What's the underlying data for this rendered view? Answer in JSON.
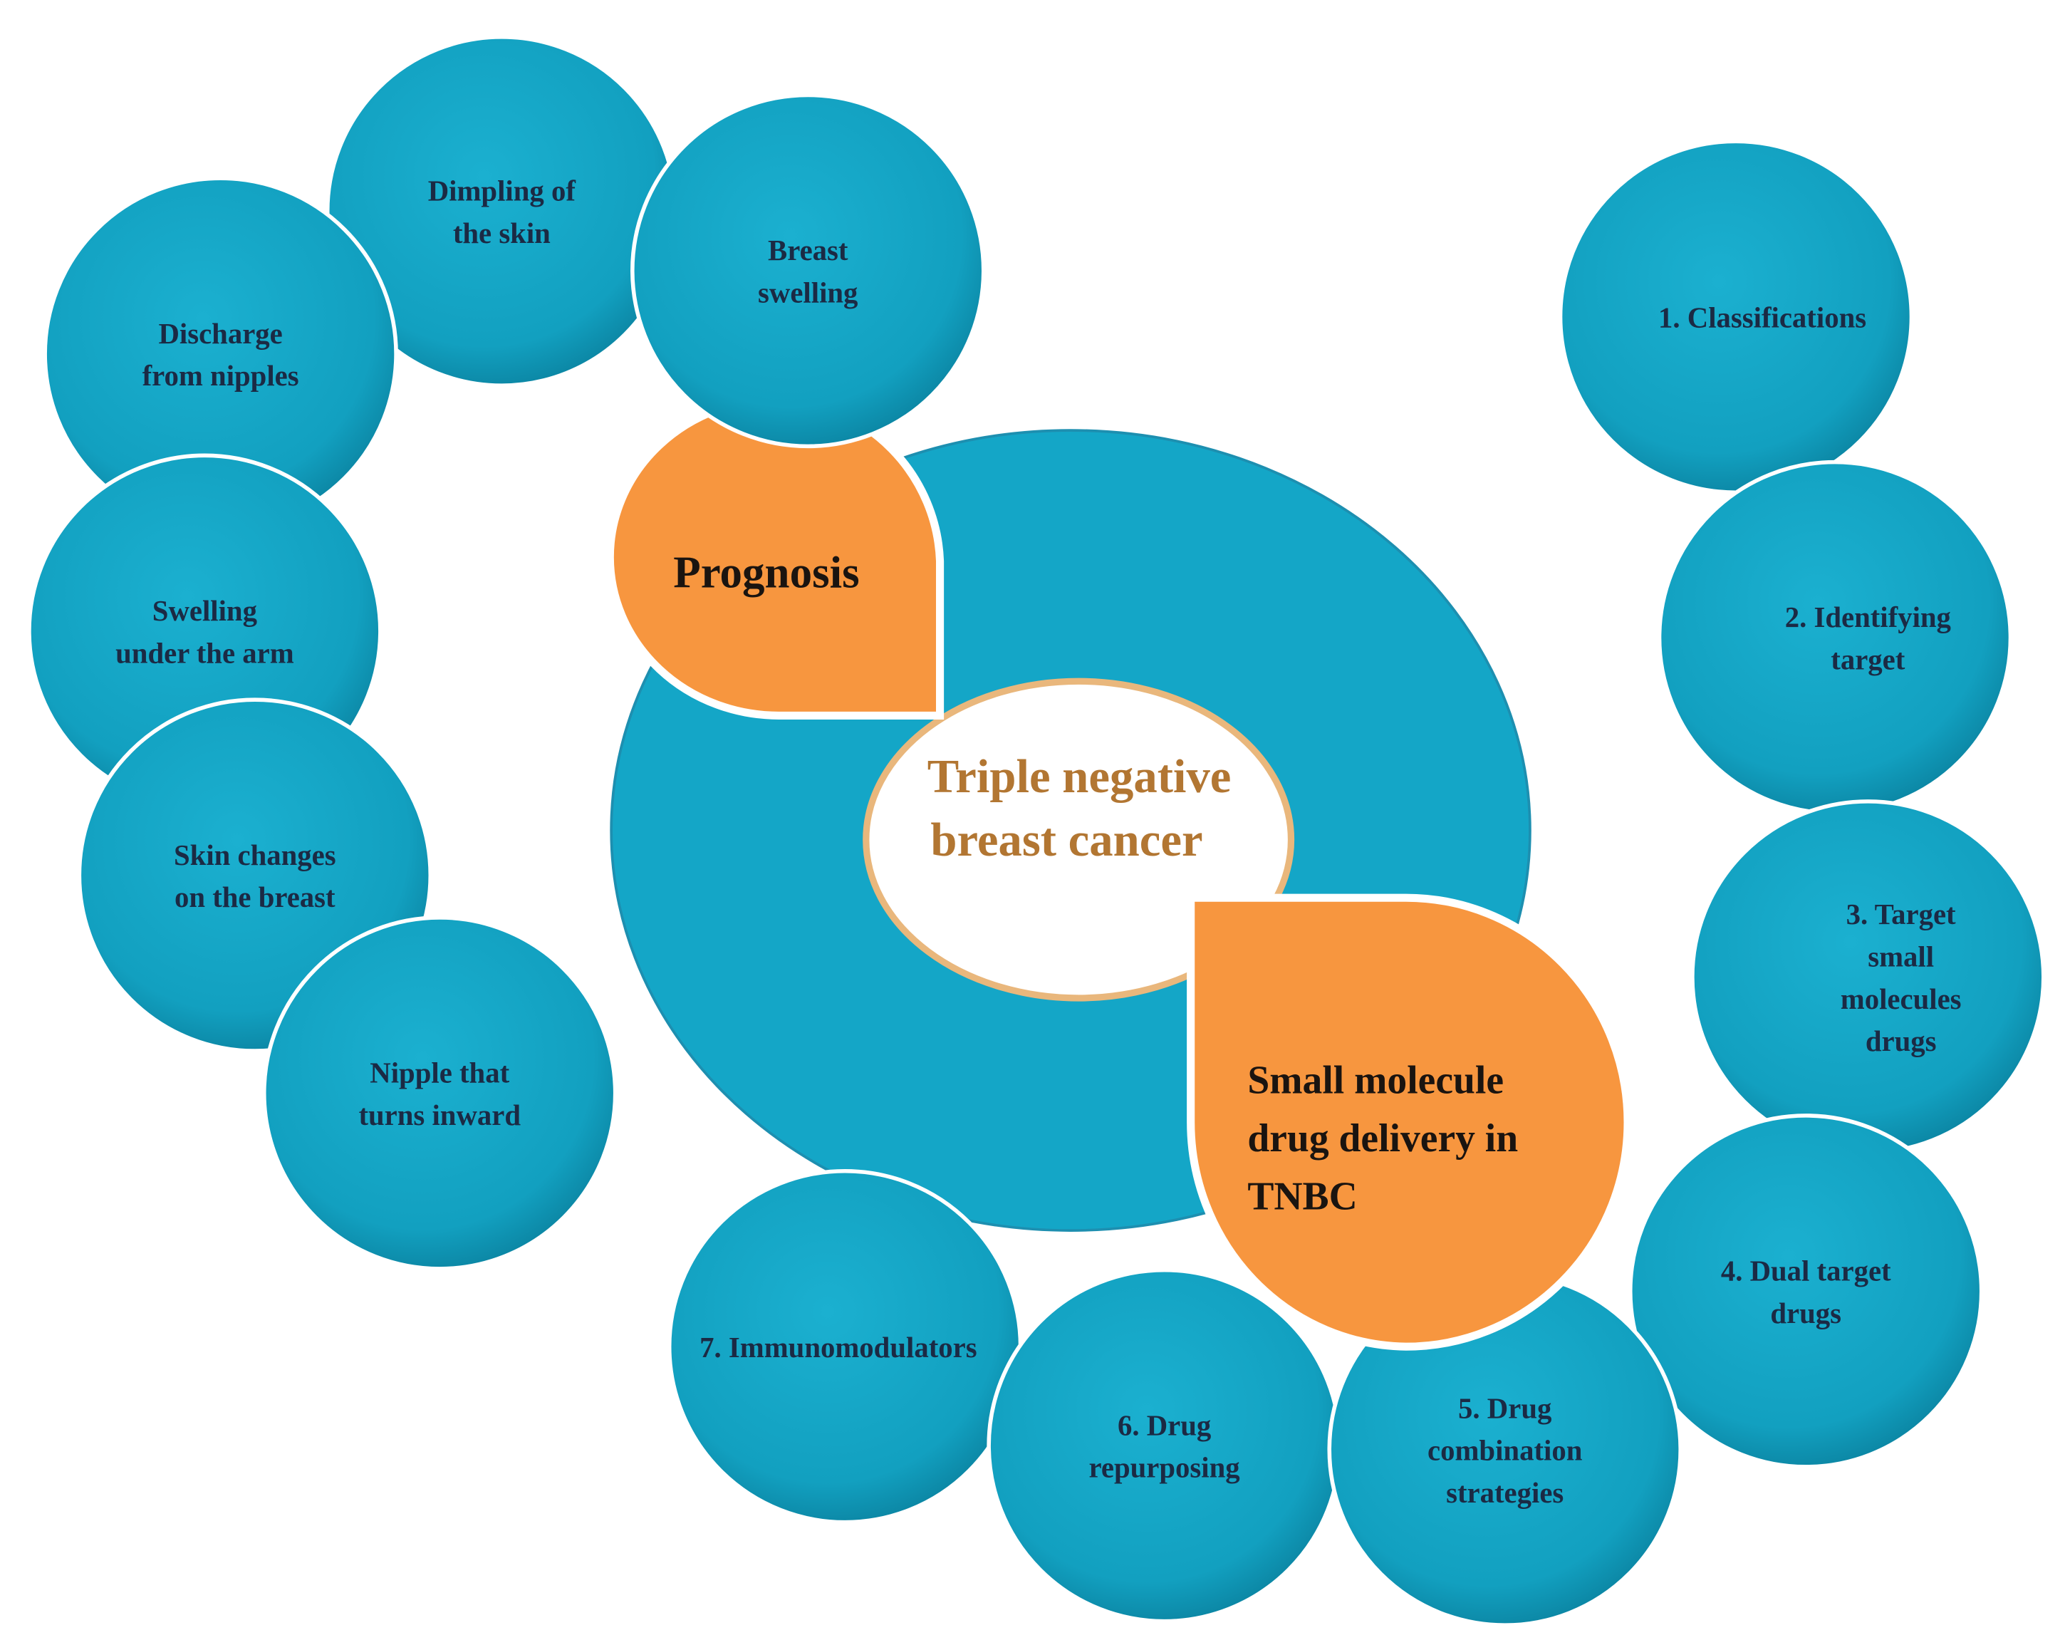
{
  "center": {
    "line1": "Triple negative",
    "line2": "breast cancer"
  },
  "prognosis": {
    "label": "Prognosis"
  },
  "drug_delivery": {
    "line1": "Small molecule",
    "line2": "drug delivery in",
    "line3": "TNBC"
  },
  "symptoms": [
    {
      "lines": [
        "Dimpling of",
        "the skin"
      ]
    },
    {
      "lines": [
        "Breast",
        "swelling"
      ]
    },
    {
      "lines": [
        "Discharge",
        "from nipples"
      ]
    },
    {
      "lines": [
        "Swelling",
        "under the arm"
      ]
    },
    {
      "lines": [
        "Skin changes",
        "on the breast"
      ]
    },
    {
      "lines": [
        "Nipple that",
        "turns inward"
      ]
    }
  ],
  "topics": [
    {
      "lines": [
        "1. Classifications"
      ]
    },
    {
      "lines": [
        "2. Identifying",
        "target"
      ]
    },
    {
      "lines": [
        "3. Target",
        "small",
        "molecules",
        "drugs"
      ]
    },
    {
      "lines": [
        "4. Dual target",
        "drugs"
      ]
    },
    {
      "lines": [
        "5. Drug",
        "combination",
        "strategies"
      ]
    },
    {
      "lines": [
        "6. Drug",
        "repurposing"
      ]
    },
    {
      "lines": [
        "7. Immunomodulators"
      ]
    }
  ],
  "colors": {
    "teal": "#15a5c6",
    "teal_dark": "#0b86a5",
    "orange": "#f7963f",
    "center_text": "#b27632"
  }
}
